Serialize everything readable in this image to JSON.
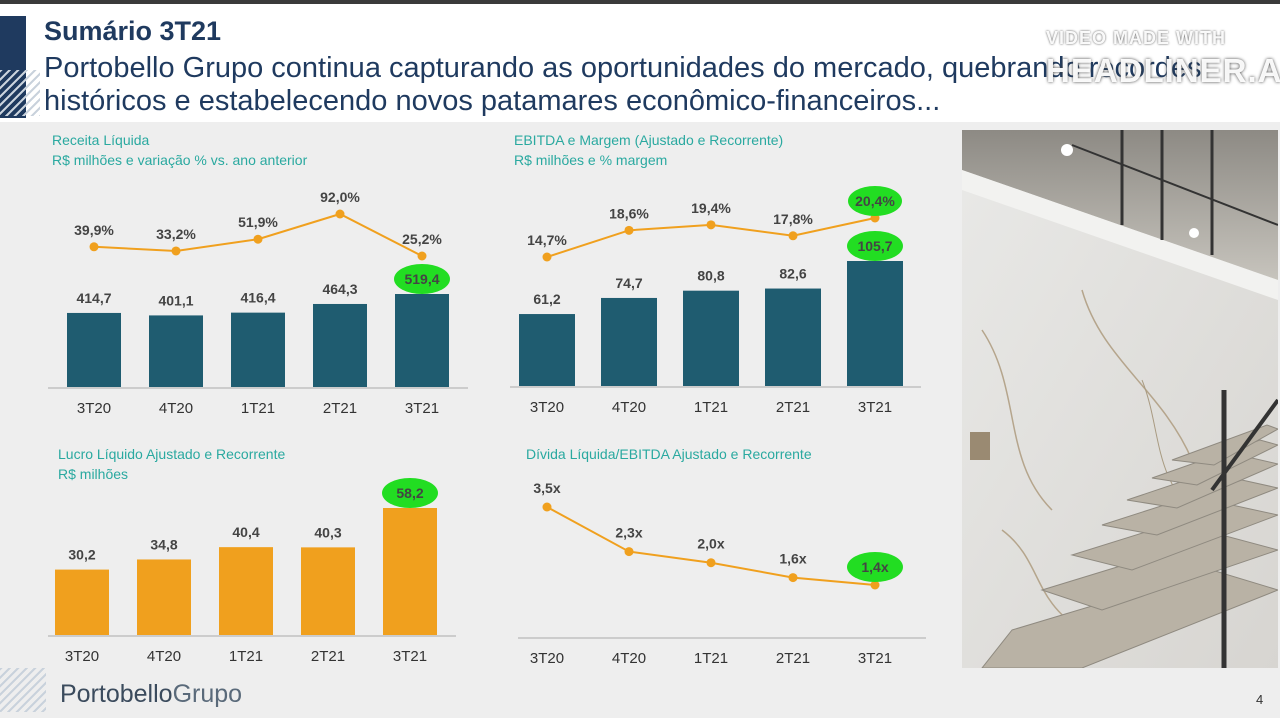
{
  "header": {
    "title": "Sumário 3T21",
    "subtitle": "Portobello Grupo continua capturando as oportunidades do mercado, quebrando recordes históricos e estabelecendo novos patamares econômico-financeiros..."
  },
  "watermark": {
    "line1": "VIDEO MADE WITH",
    "line2": "HEADLINER.APP"
  },
  "footer": {
    "logo_left": "Portobello",
    "logo_right": "Grupo",
    "page": "4"
  },
  "colors": {
    "teal_bar": "#1f5c70",
    "orange": "#f0a01e",
    "highlight": "#22dd22",
    "title_teal": "#2aa9a0"
  },
  "chart_data": [
    {
      "id": "receita",
      "type": "bar",
      "title": "Receita Líquida",
      "subtitle": "R$ milhões e variação % vs. ano anterior",
      "categories": [
        "3T20",
        "4T20",
        "1T21",
        "2T21",
        "3T21"
      ],
      "values": [
        414.7,
        401.1,
        416.4,
        464.3,
        519.4
      ],
      "value_labels": [
        "414,7",
        "401,1",
        "416,4",
        "464,3",
        "519,4"
      ],
      "line_values": [
        39.9,
        33.2,
        51.9,
        92.0,
        25.2
      ],
      "line_labels": [
        "39,9%",
        "33,2%",
        "51,9%",
        "92,0%",
        "25,2%"
      ],
      "highlight_bar": 4,
      "highlight_line": -1
    },
    {
      "id": "ebitda",
      "type": "bar",
      "title": "EBITDA e Margem (Ajustado e Recorrente)",
      "subtitle": "R$ milhões e % margem",
      "categories": [
        "3T20",
        "4T20",
        "1T21",
        "2T21",
        "3T21"
      ],
      "values": [
        61.2,
        74.7,
        80.8,
        82.6,
        105.7
      ],
      "value_labels": [
        "61,2",
        "74,7",
        "80,8",
        "82,6",
        "105,7"
      ],
      "line_values": [
        14.7,
        18.6,
        19.4,
        17.8,
        20.4
      ],
      "line_labels": [
        "14,7%",
        "18,6%",
        "19,4%",
        "17,8%",
        "20,4%"
      ],
      "highlight_bar": 4,
      "highlight_line": 4
    },
    {
      "id": "lucro",
      "type": "bar",
      "title": "Lucro Líquido Ajustado e Recorrente",
      "subtitle": "R$ milhões",
      "categories": [
        "3T20",
        "4T20",
        "1T21",
        "2T21",
        "3T21"
      ],
      "values": [
        30.2,
        34.8,
        40.4,
        40.3,
        58.2
      ],
      "value_labels": [
        "30,2",
        "34,8",
        "40,4",
        "40,3",
        "58,2"
      ],
      "highlight_bar": 4
    },
    {
      "id": "divida",
      "type": "line",
      "title": "Dívida Líquida/EBITDA Ajustado e Recorrente",
      "subtitle": "",
      "categories": [
        "3T20",
        "4T20",
        "1T21",
        "2T21",
        "3T21"
      ],
      "values": [
        3.5,
        2.3,
        2.0,
        1.6,
        1.4
      ],
      "value_labels": [
        "3,5x",
        "2,3x",
        "2,0x",
        "1,6x",
        "1,4x"
      ],
      "highlight_point": 4
    }
  ]
}
